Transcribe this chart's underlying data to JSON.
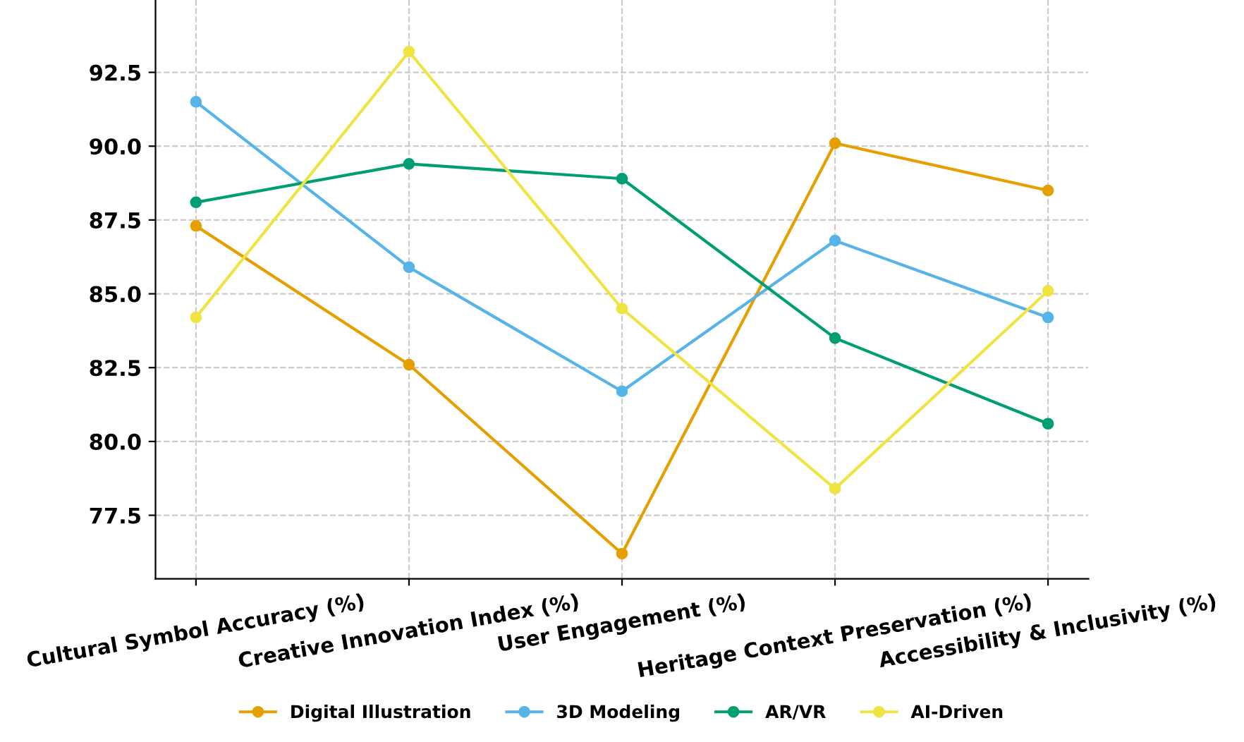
{
  "chart_data": {
    "type": "line",
    "categories": [
      "Cultural Symbol Accuracy (%)",
      "Creative Innovation Index (%)",
      "User Engagement (%)",
      "Heritage Context Preservation (%)",
      "Accessibility & Inclusivity (%)"
    ],
    "series": [
      {
        "name": "Digital Illustration",
        "color": "#e69f00",
        "values": [
          87.3,
          82.6,
          76.2,
          90.1,
          88.5
        ]
      },
      {
        "name": "3D Modeling",
        "color": "#56b4e9",
        "values": [
          91.5,
          85.9,
          81.7,
          86.8,
          84.2
        ]
      },
      {
        "name": "AR/VR",
        "color": "#009e73",
        "values": [
          88.1,
          89.4,
          88.9,
          83.5,
          80.6
        ]
      },
      {
        "name": "AI-Driven",
        "color": "#f0e442",
        "values": [
          84.2,
          93.2,
          84.5,
          78.4,
          85.1
        ]
      }
    ],
    "ylim": [
      75.35,
      94.95
    ],
    "yticks": [
      {
        "value": 77.5,
        "label": "77.5"
      },
      {
        "value": 80,
        "label": "80.0"
      },
      {
        "value": 82.5,
        "label": "82.5"
      },
      {
        "value": 85,
        "label": "85.0"
      },
      {
        "value": 87.5,
        "label": "87.5"
      },
      {
        "value": 90,
        "label": "90.0"
      },
      {
        "value": 92.5,
        "label": "92.5"
      }
    ],
    "grid": true,
    "legend": "bottom",
    "marker": "circle",
    "line_style": "solid"
  }
}
